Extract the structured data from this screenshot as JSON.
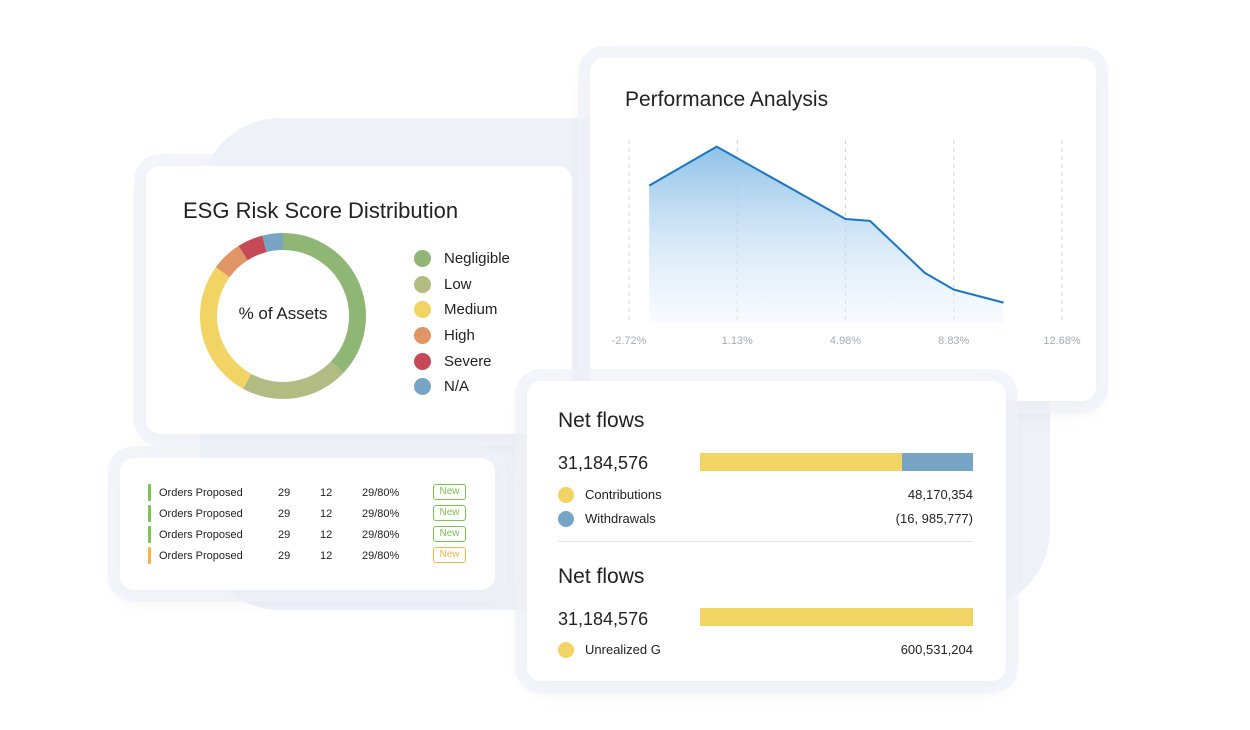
{
  "esg": {
    "title": "ESG Risk Score Distribution",
    "center_label": "% of Assets",
    "legend": [
      {
        "label": "Negligible",
        "color": "#8fb674"
      },
      {
        "label": "Low",
        "color": "#b1bb82"
      },
      {
        "label": "Medium",
        "color": "#f1d463"
      },
      {
        "label": "High",
        "color": "#e19466"
      },
      {
        "label": "Severe",
        "color": "#c64a55"
      },
      {
        "label": "N/A",
        "color": "#78a5c5"
      }
    ]
  },
  "performance": {
    "title": "Performance Analysis",
    "line_color": "#1a76c4"
  },
  "orders": {
    "rows": [
      {
        "name": "Orders Proposed",
        "a": "29",
        "b": "12",
        "c": "29/80%",
        "badge": "New",
        "color": "#7cc353"
      },
      {
        "name": "Orders Proposed",
        "a": "29",
        "b": "12",
        "c": "29/80%",
        "badge": "New",
        "color": "#7cc353"
      },
      {
        "name": "Orders Proposed",
        "a": "29",
        "b": "12",
        "c": "29/80%",
        "badge": "New",
        "color": "#7cc353"
      },
      {
        "name": "Orders Proposed",
        "a": "29",
        "b": "12",
        "c": "29/80%",
        "badge": "New",
        "color": "#f5b54a"
      }
    ]
  },
  "netflows": {
    "section1": {
      "title": "Net flows",
      "total": "31,184,576",
      "items": [
        {
          "label": "Contributions",
          "value": "48,170,354",
          "color": "#f1d463"
        },
        {
          "label": "Withdrawals",
          "value": "(16, 985,777)",
          "color": "#78a5c5"
        }
      ]
    },
    "section2": {
      "title": "Net flows",
      "total": "31,184,576",
      "items": [
        {
          "label": "Unrealized G",
          "value": "600,531,204",
          "color": "#f1d463"
        }
      ]
    }
  },
  "chart_data": [
    {
      "type": "pie",
      "title": "ESG Risk Score Distribution",
      "categories": [
        "Negligible",
        "Low",
        "Medium",
        "High",
        "Severe",
        "N/A"
      ],
      "values": [
        37,
        21,
        27,
        6,
        5,
        4
      ],
      "colors": [
        "#8fb674",
        "#b1bb82",
        "#f1d463",
        "#e19466",
        "#c64a55",
        "#78a5c5"
      ]
    },
    {
      "type": "area",
      "title": "Performance Analysis",
      "xticks": [
        "-2.72%",
        "1.13%",
        "4.98%",
        "8.83%",
        "12.68%"
      ],
      "xlim": [
        -2.72,
        12.68
      ],
      "x": [
        -2.0,
        0.4,
        4.98,
        5.85,
        7.8,
        8.83,
        10.6
      ],
      "y": [
        0.74,
        0.95,
        0.56,
        0.55,
        0.27,
        0.18,
        0.11
      ],
      "ylim": [
        0,
        1.05
      ],
      "grid": "vertical dashed"
    },
    {
      "type": "bar",
      "title": "Net flows",
      "categories": [
        "Contributions",
        "Withdrawals"
      ],
      "values": [
        48170354,
        16985777
      ],
      "colors": [
        "#f1d463",
        "#78a5c5"
      ],
      "orientation": "horizontal stacked"
    },
    {
      "type": "bar",
      "title": "Net flows",
      "categories": [
        "Unrealized G"
      ],
      "values": [
        600531204
      ],
      "colors": [
        "#f1d463"
      ],
      "orientation": "horizontal stacked"
    }
  ]
}
